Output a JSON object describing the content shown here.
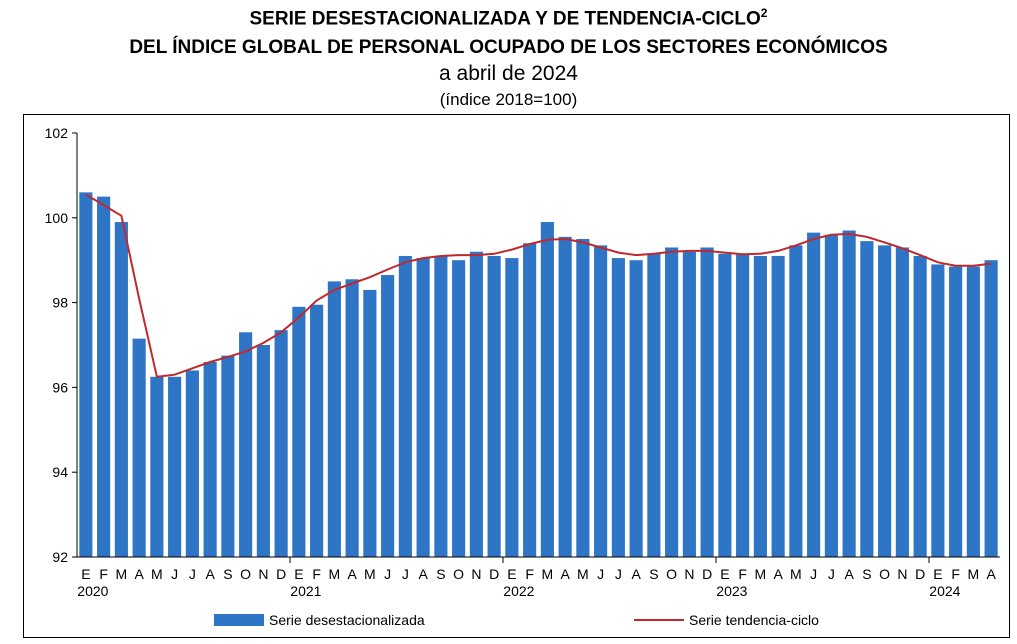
{
  "header": {
    "title_line1": "SERIE DESESTACIONALIZADA Y DE TENDENCIA-CICLO",
    "title_sup": "2",
    "title_line2": "DEL ÍNDICE GLOBAL DE PERSONAL OCUPADO DE LOS SECTORES ECONÓMICOS",
    "subtitle": "a abril de 2024",
    "unit": "(índice 2018=100)"
  },
  "chart_data": {
    "type": "bar",
    "ylim": [
      92,
      102
    ],
    "yticks": [
      92,
      94,
      96,
      98,
      100,
      102
    ],
    "month_labels": [
      "E",
      "F",
      "M",
      "A",
      "M",
      "J",
      "J",
      "A",
      "S",
      "O",
      "N",
      "D",
      "E",
      "F",
      "M",
      "A",
      "M",
      "J",
      "J",
      "A",
      "S",
      "O",
      "N",
      "D",
      "E",
      "F",
      "M",
      "A",
      "M",
      "J",
      "J",
      "A",
      "S",
      "O",
      "N",
      "D",
      "E",
      "F",
      "M",
      "A",
      "M",
      "J",
      "J",
      "A",
      "S",
      "O",
      "N",
      "D",
      "E",
      "F",
      "M",
      "A"
    ],
    "year_labels": [
      {
        "label": "2020",
        "index": 0
      },
      {
        "label": "2021",
        "index": 12
      },
      {
        "label": "2022",
        "index": 24
      },
      {
        "label": "2023",
        "index": 36
      },
      {
        "label": "2024",
        "index": 48
      }
    ],
    "series": [
      {
        "name": "Serie desestacionalizada",
        "kind": "bar",
        "color": "#2E75C6",
        "values": [
          100.6,
          100.5,
          99.9,
          97.15,
          96.25,
          96.25,
          96.4,
          96.6,
          96.75,
          97.3,
          97.0,
          97.35,
          97.9,
          97.95,
          98.5,
          98.55,
          98.3,
          98.65,
          99.1,
          99.05,
          99.1,
          99.0,
          99.2,
          99.1,
          99.05,
          99.4,
          99.9,
          99.55,
          99.5,
          99.35,
          99.05,
          99.0,
          99.15,
          99.3,
          99.2,
          99.3,
          99.15,
          99.15,
          99.1,
          99.1,
          99.35,
          99.65,
          99.6,
          99.7,
          99.45,
          99.35,
          99.3,
          99.1,
          98.9,
          98.85,
          98.85,
          99.0
        ]
      },
      {
        "name": "Serie tendencia-ciclo",
        "kind": "line",
        "color": "#C0282D",
        "values": [
          100.55,
          100.3,
          100.05,
          98.1,
          96.25,
          96.3,
          96.45,
          96.6,
          96.72,
          96.85,
          97.05,
          97.3,
          97.65,
          98.05,
          98.3,
          98.45,
          98.6,
          98.78,
          98.95,
          99.05,
          99.1,
          99.12,
          99.12,
          99.15,
          99.25,
          99.38,
          99.48,
          99.5,
          99.42,
          99.3,
          99.18,
          99.12,
          99.15,
          99.2,
          99.22,
          99.22,
          99.18,
          99.14,
          99.15,
          99.22,
          99.35,
          99.5,
          99.6,
          99.62,
          99.55,
          99.42,
          99.28,
          99.12,
          98.95,
          98.87,
          98.87,
          98.92
        ]
      }
    ]
  }
}
